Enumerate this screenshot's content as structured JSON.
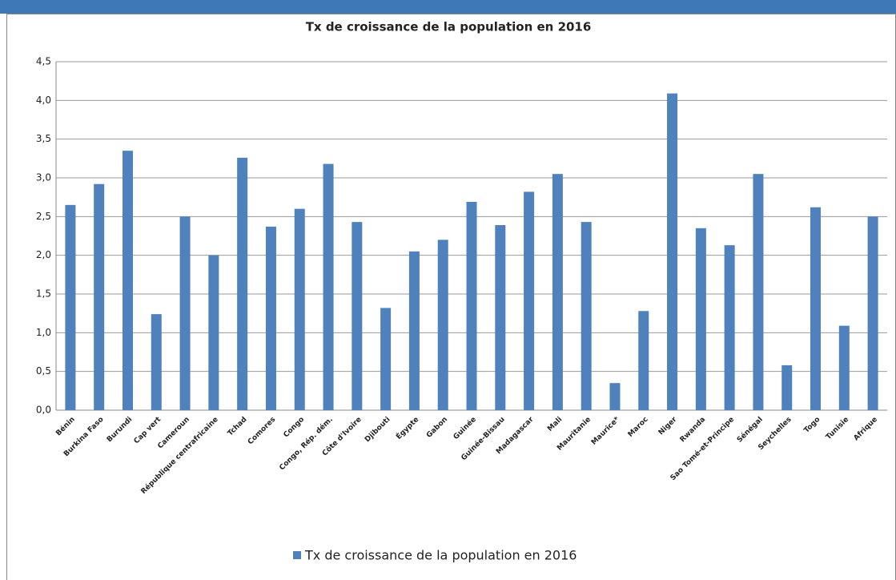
{
  "chart_data": {
    "type": "bar",
    "title": "Tx de croissance de la population en 2016",
    "categories": [
      "Bénin",
      "Burkina Faso",
      "Burundi",
      "Cap vert",
      "Cameroun",
      "République centrafricaine",
      "Tchad",
      "Comores",
      "Congo",
      "Congo, Rép. dém.",
      "Côte d'Ivoire",
      "Djibouti",
      "Égypte",
      "Gabon",
      "Guinée",
      "Guinée-Bissau",
      "Madagascar",
      "Mali",
      "Mauritanie",
      "Maurice*",
      "Maroc",
      "Niger",
      "Rwanda",
      "Sao Tomé-et-Principe",
      "Sénégal",
      "Seychelles",
      "Togo",
      "Tunisie",
      "Afrique"
    ],
    "series": [
      {
        "name": "Tx de croissance de la population en 2016",
        "color": "#4f81bd",
        "values": [
          2.65,
          2.92,
          3.35,
          1.24,
          2.5,
          2.0,
          3.26,
          2.37,
          2.6,
          3.18,
          2.43,
          1.32,
          2.05,
          2.2,
          2.69,
          2.39,
          2.82,
          3.05,
          2.43,
          0.35,
          1.28,
          4.09,
          2.35,
          2.13,
          3.05,
          0.58,
          2.62,
          1.09,
          2.5
        ]
      }
    ],
    "ylim": [
      0,
      4.5
    ],
    "yticks": [
      {
        "value": 0,
        "label": "0,0"
      },
      {
        "value": 0.5,
        "label": "0,5"
      },
      {
        "value": 1,
        "label": "1,0"
      },
      {
        "value": 1.5,
        "label": "1,5"
      },
      {
        "value": 2,
        "label": "2,0"
      },
      {
        "value": 2.5,
        "label": "2,5"
      },
      {
        "value": 3,
        "label": "3,0"
      },
      {
        "value": 3.5,
        "label": "3,5"
      },
      {
        "value": 4,
        "label": "4,0"
      },
      {
        "value": 4.5,
        "label": "4,5"
      }
    ],
    "grid": true,
    "legend": "bottom"
  }
}
